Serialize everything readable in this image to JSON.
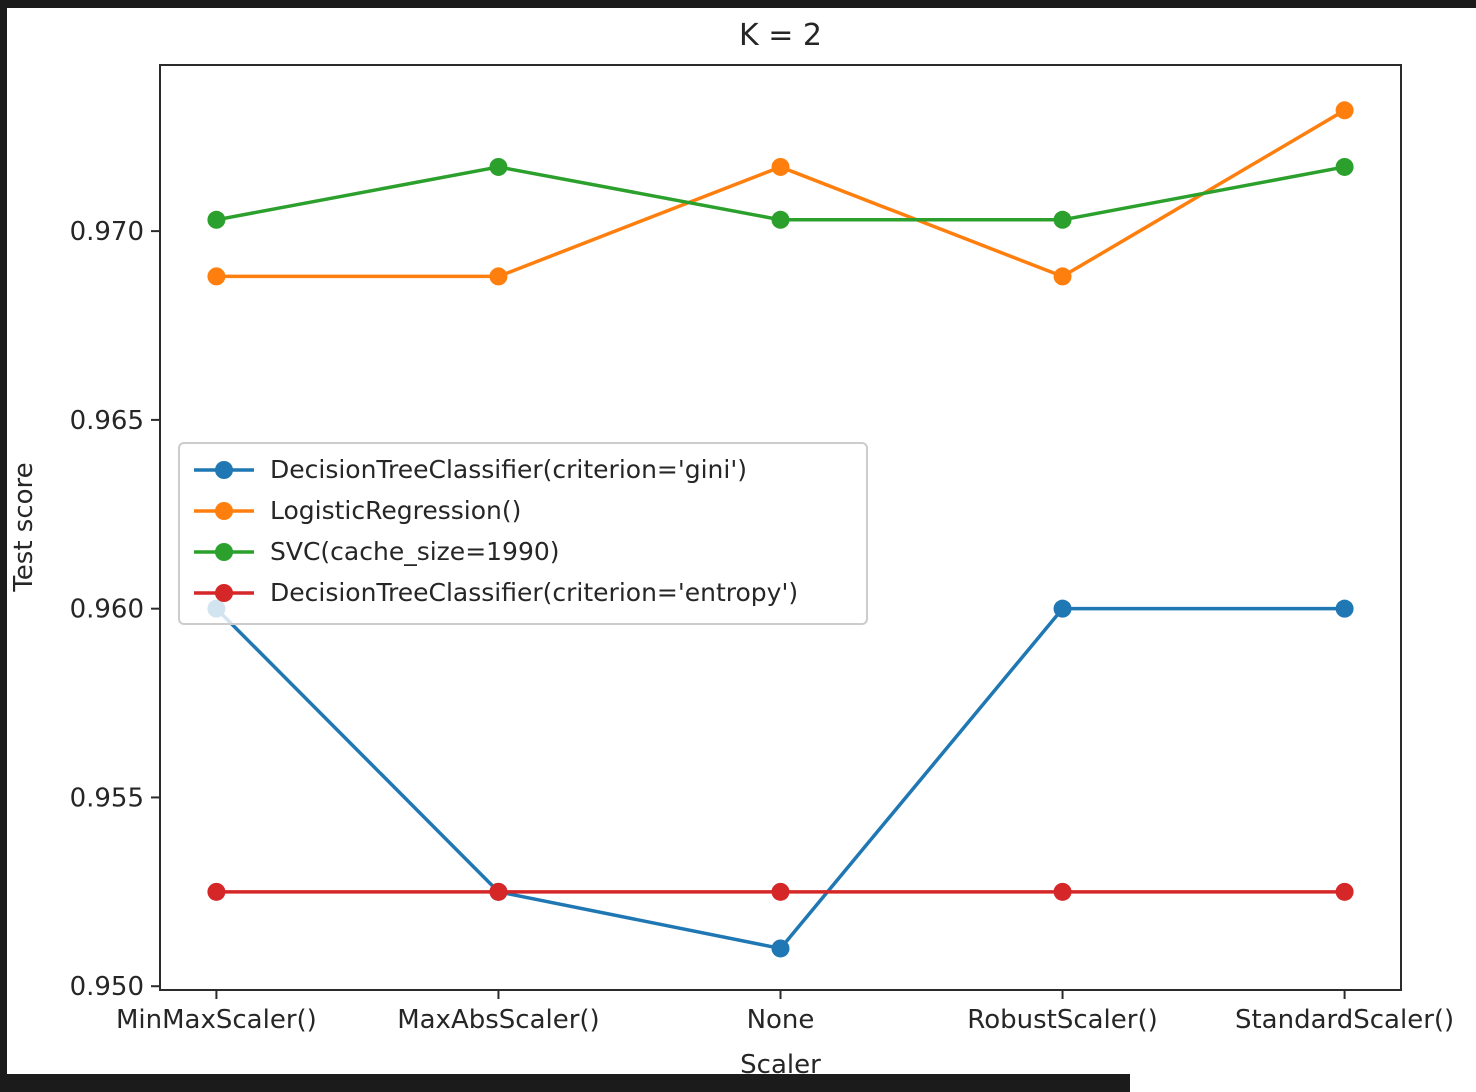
{
  "chart_data": {
    "type": "line",
    "title": "K = 2",
    "xlabel": "Scaler",
    "ylabel": "Test score",
    "categories": [
      "MinMaxScaler()",
      "MaxAbsScaler()",
      "None",
      "RobustScaler()",
      "StandardScaler()"
    ],
    "series": [
      {
        "name": "DecisionTreeClassifier(criterion='gini')",
        "color": "#1f77b4",
        "values": [
          0.96,
          0.9525,
          0.951,
          0.96,
          0.96
        ]
      },
      {
        "name": "LogisticRegression()",
        "color": "#ff7f0e",
        "values": [
          0.9688,
          0.9688,
          0.9717,
          0.9688,
          0.9732
        ]
      },
      {
        "name": "SVC(cache_size=1990)",
        "color": "#2ca02c",
        "values": [
          0.9703,
          0.9717,
          0.9703,
          0.9703,
          0.9717
        ]
      },
      {
        "name": "DecisionTreeClassifier(criterion='entropy')",
        "color": "#d62728",
        "values": [
          0.9525,
          0.9525,
          0.9525,
          0.9525,
          0.9525
        ]
      }
    ],
    "yticks": [
      0.95,
      0.955,
      0.96,
      0.965,
      0.97
    ],
    "ytick_labels": [
      "0.950",
      "0.955",
      "0.960",
      "0.965",
      "0.970"
    ],
    "ylim": [
      0.9499,
      0.9744
    ],
    "grid": false,
    "marker": "circle",
    "legend_position": "center-left",
    "text_color": "#262626",
    "spine_color": "#2b2b2b"
  }
}
